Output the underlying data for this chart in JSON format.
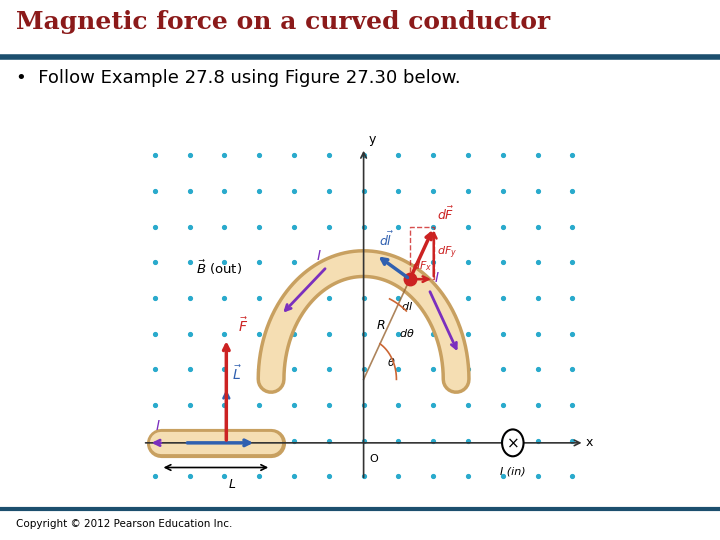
{
  "title": "Magnetic force on a curved conductor",
  "title_color": "#8B1A1A",
  "title_fontsize": 18,
  "bullet_text": "Follow Example 27.8 using Figure 27.30 below.",
  "bullet_fontsize": 13,
  "copyright": "Copyright © 2012 Pearson Education Inc.",
  "bg_color": "#ffffff",
  "panel_bg": "#dce8f0",
  "header_line_color": "#1C4F6E",
  "footer_line_color": "#1C4F6E",
  "dot_color": "#29AACC",
  "conductor_color": "#F5DEB3",
  "conductor_edge": "#C8A060",
  "arrow_current_color": "#3060B0",
  "arrow_force_color": "#CC2222",
  "arrow_purple": "#7B2FBE",
  "axis_color": "#333333"
}
